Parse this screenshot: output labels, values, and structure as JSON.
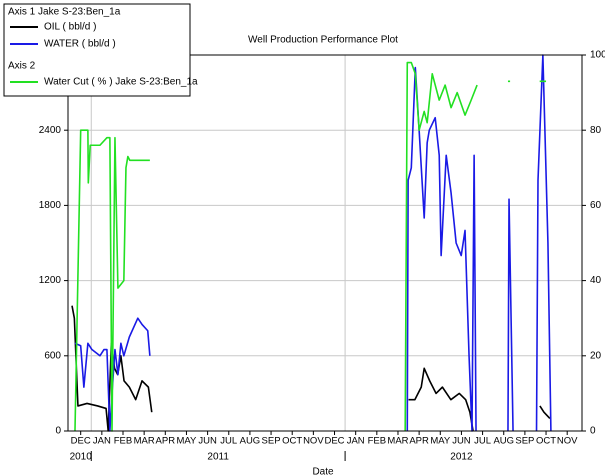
{
  "chart_data": {
    "type": "line",
    "title": "Well Production Performance Plot",
    "xlabel": "Date",
    "legend_headers": [
      "Axis 1  Jake S-23:Ben_1a",
      "Axis 2"
    ],
    "xlim": [
      -0.6,
      23.7
    ],
    "xticks": [
      {
        "value": 0,
        "label": "DEC"
      },
      {
        "value": 1,
        "label": "JAN"
      },
      {
        "value": 2,
        "label": "FEB"
      },
      {
        "value": 3,
        "label": "MAR"
      },
      {
        "value": 4,
        "label": "APR"
      },
      {
        "value": 5,
        "label": "MAY"
      },
      {
        "value": 6,
        "label": "JUN"
      },
      {
        "value": 7,
        "label": "JUL"
      },
      {
        "value": 8,
        "label": "AUG"
      },
      {
        "value": 9,
        "label": "SEP"
      },
      {
        "value": 10,
        "label": "OCT"
      },
      {
        "value": 11,
        "label": "NOV"
      },
      {
        "value": 12,
        "label": "DEC"
      },
      {
        "value": 13,
        "label": "JAN"
      },
      {
        "value": 14,
        "label": "FEB"
      },
      {
        "value": 15,
        "label": "MAR"
      },
      {
        "value": 16,
        "label": "APR"
      },
      {
        "value": 17,
        "label": "MAY"
      },
      {
        "value": 18,
        "label": "JUN"
      },
      {
        "value": 19,
        "label": "JUL"
      },
      {
        "value": 20,
        "label": "AUG"
      },
      {
        "value": 21,
        "label": "SEP"
      },
      {
        "value": 22,
        "label": "OCT"
      },
      {
        "value": 23,
        "label": "NOV"
      }
    ],
    "year_labels": [
      {
        "value": 0,
        "label": "2010"
      },
      {
        "value": 6.5,
        "label": "2011"
      },
      {
        "value": 18,
        "label": "2012"
      }
    ],
    "xgrid": [
      0.5,
      12.5
    ],
    "ylim": [
      0,
      3000
    ],
    "yticks": [
      0,
      600,
      1200,
      1800,
      2400
    ],
    "y2lim": [
      0,
      100
    ],
    "y2ticks": [
      0,
      20,
      40,
      60,
      80,
      100
    ],
    "grid": true,
    "series": [
      {
        "name": "OIL ( bbl/d )",
        "color": "#000000",
        "axis": "y",
        "x": [
          -0.41,
          -0.3,
          -0.13,
          0.3,
          0.8,
          1.2,
          1.3,
          1.45,
          1.6,
          1.75,
          1.9,
          2.05,
          2.3,
          2.6,
          2.9,
          3.2,
          3.36,
          null,
          15.5,
          15.8,
          16.1,
          16.24,
          16.5,
          16.8,
          17.1,
          17.5,
          17.9,
          18.2,
          18.4,
          18.55,
          null,
          21.71,
          21.9,
          22.18
        ],
        "values": [
          1000,
          900,
          200,
          220,
          200,
          180,
          0,
          700,
          500,
          450,
          600,
          400,
          350,
          250,
          400,
          350,
          150,
          null,
          250,
          250,
          350,
          500,
          400,
          300,
          350,
          250,
          300,
          250,
          150,
          0,
          null,
          200,
          150,
          100
        ]
      },
      {
        "name": "WATER ( bbl/d )",
        "color": "#1a1ae6",
        "axis": "y",
        "x": [
          -0.27,
          0.0,
          0.15,
          0.34,
          0.53,
          0.91,
          1.1,
          1.24,
          1.38,
          1.48,
          1.62,
          1.76,
          1.9,
          2.04,
          2.3,
          2.7,
          2.9,
          3.17,
          3.27,
          null,
          15.44,
          15.48,
          15.63,
          15.82,
          16.0,
          16.24,
          16.38,
          16.48,
          16.76,
          16.95,
          17.04,
          17.28,
          17.51,
          17.75,
          17.99,
          18.17,
          18.36,
          18.5,
          18.6,
          18.69,
          null,
          20.2,
          20.25,
          20.44,
          null,
          21.55,
          21.62,
          21.85,
          22.09,
          22.23
        ],
        "values": [
          700,
          680,
          350,
          700,
          650,
          600,
          650,
          650,
          0,
          300,
          650,
          450,
          700,
          600,
          750,
          900,
          850,
          800,
          600,
          null,
          0,
          2000,
          2100,
          2900,
          2400,
          1700,
          2300,
          2400,
          2500,
          2200,
          1400,
          2200,
          1900,
          1500,
          1400,
          1600,
          600,
          0,
          2200,
          0,
          null,
          0,
          1850,
          0,
          null,
          0,
          2000,
          3000,
          1500,
          0
        ]
      },
      {
        "name": "Water Cut ( % ) Jake S-23:Ben_1a",
        "color": "#22e022",
        "axis": "y2",
        "x": [
          -0.27,
          0.0,
          0.34,
          0.36,
          0.45,
          0.91,
          1.24,
          1.38,
          1.48,
          1.62,
          1.76,
          2.04,
          2.14,
          2.23,
          2.32,
          3.27,
          null,
          15.34,
          15.44,
          15.63,
          15.82,
          16.0,
          16.24,
          16.38,
          16.62,
          16.95,
          17.23,
          17.51,
          17.8,
          18.17,
          18.46,
          18.74,
          null,
          20.2,
          20.3,
          null,
          21.7,
          22.0
        ],
        "values": [
          0,
          80,
          80,
          66,
          76,
          76,
          78,
          78,
          0,
          78,
          38,
          40,
          70,
          73,
          72,
          72,
          null,
          0,
          98,
          98,
          95,
          80,
          85,
          82,
          95,
          88,
          92,
          86,
          90,
          84,
          88,
          92,
          null,
          93,
          93,
          null,
          93,
          93
        ]
      }
    ]
  }
}
